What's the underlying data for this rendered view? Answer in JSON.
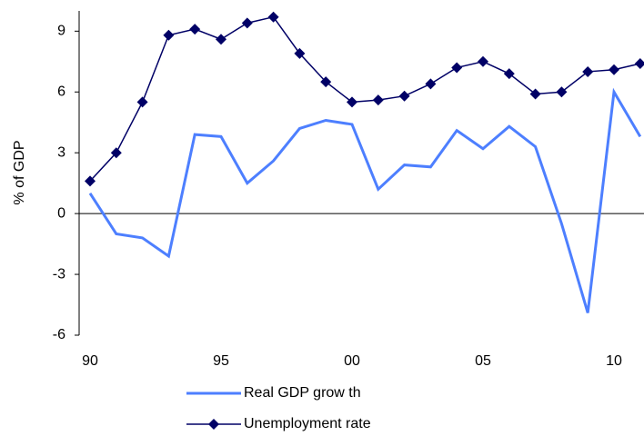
{
  "chart_data": {
    "type": "line",
    "y_label": "% of GDP",
    "categories": [
      "90",
      null,
      null,
      null,
      null,
      "95",
      null,
      null,
      null,
      null,
      "00",
      null,
      null,
      null,
      null,
      "05",
      null,
      null,
      null,
      null,
      "10",
      null
    ],
    "series": [
      {
        "name": "Real GDP grow th",
        "color": "#4d7fff",
        "marker": false,
        "values": [
          1.0,
          -1.0,
          -1.2,
          -2.1,
          3.9,
          3.8,
          1.5,
          2.6,
          4.2,
          4.6,
          4.4,
          1.2,
          2.4,
          2.3,
          4.1,
          3.2,
          4.3,
          3.3,
          -0.5,
          -4.9,
          6.0,
          3.8
        ]
      },
      {
        "name": "Unemployment rate",
        "color": "#000066",
        "marker": true,
        "values": [
          1.6,
          3.0,
          5.5,
          8.8,
          9.1,
          8.6,
          9.4,
          9.7,
          7.9,
          6.5,
          5.5,
          5.6,
          5.8,
          6.4,
          7.2,
          7.5,
          6.9,
          5.9,
          6.0,
          7.0,
          7.1,
          7.4
        ]
      }
    ],
    "ylim": [
      -6,
      10
    ],
    "yticks": [
      -6,
      -3,
      0,
      3,
      6,
      9
    ]
  }
}
